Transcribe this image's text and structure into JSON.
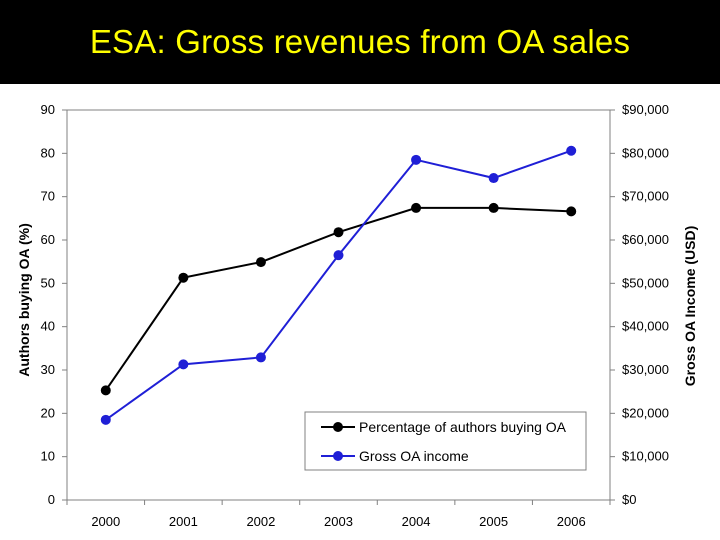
{
  "slide": {
    "title": "ESA: Gross revenues from OA sales"
  },
  "chart_data": {
    "type": "line",
    "categories": [
      "2000",
      "2001",
      "2002",
      "2003",
      "2004",
      "2005",
      "2006"
    ],
    "y_left": {
      "label": "Authors buying OA (%)",
      "ylim": [
        0,
        90
      ],
      "ticks": [
        "0",
        "10",
        "20",
        "30",
        "40",
        "50",
        "60",
        "70",
        "80",
        "90"
      ]
    },
    "y_right": {
      "label": "Gross OA Income (USD)",
      "ylim": [
        0,
        90000
      ],
      "ticks": [
        "$0",
        "$10,000",
        "$20,000",
        "$30,000",
        "$40,000",
        "$50,000",
        "$60,000",
        "$70,000",
        "$80,000",
        "$90,000"
      ]
    },
    "series": [
      {
        "name": "Percentage of authors buying OA",
        "axis": "left",
        "color": "#000000",
        "values": [
          25.3,
          51.3,
          54.9,
          61.8,
          67.4,
          67.4,
          66.6
        ]
      },
      {
        "name": "Gross OA income",
        "axis": "right",
        "color": "#1f1fd6",
        "values": [
          18500,
          31300,
          32900,
          56500,
          78500,
          74300,
          80600
        ]
      }
    ],
    "grid": false,
    "legend": "bottom-right"
  }
}
